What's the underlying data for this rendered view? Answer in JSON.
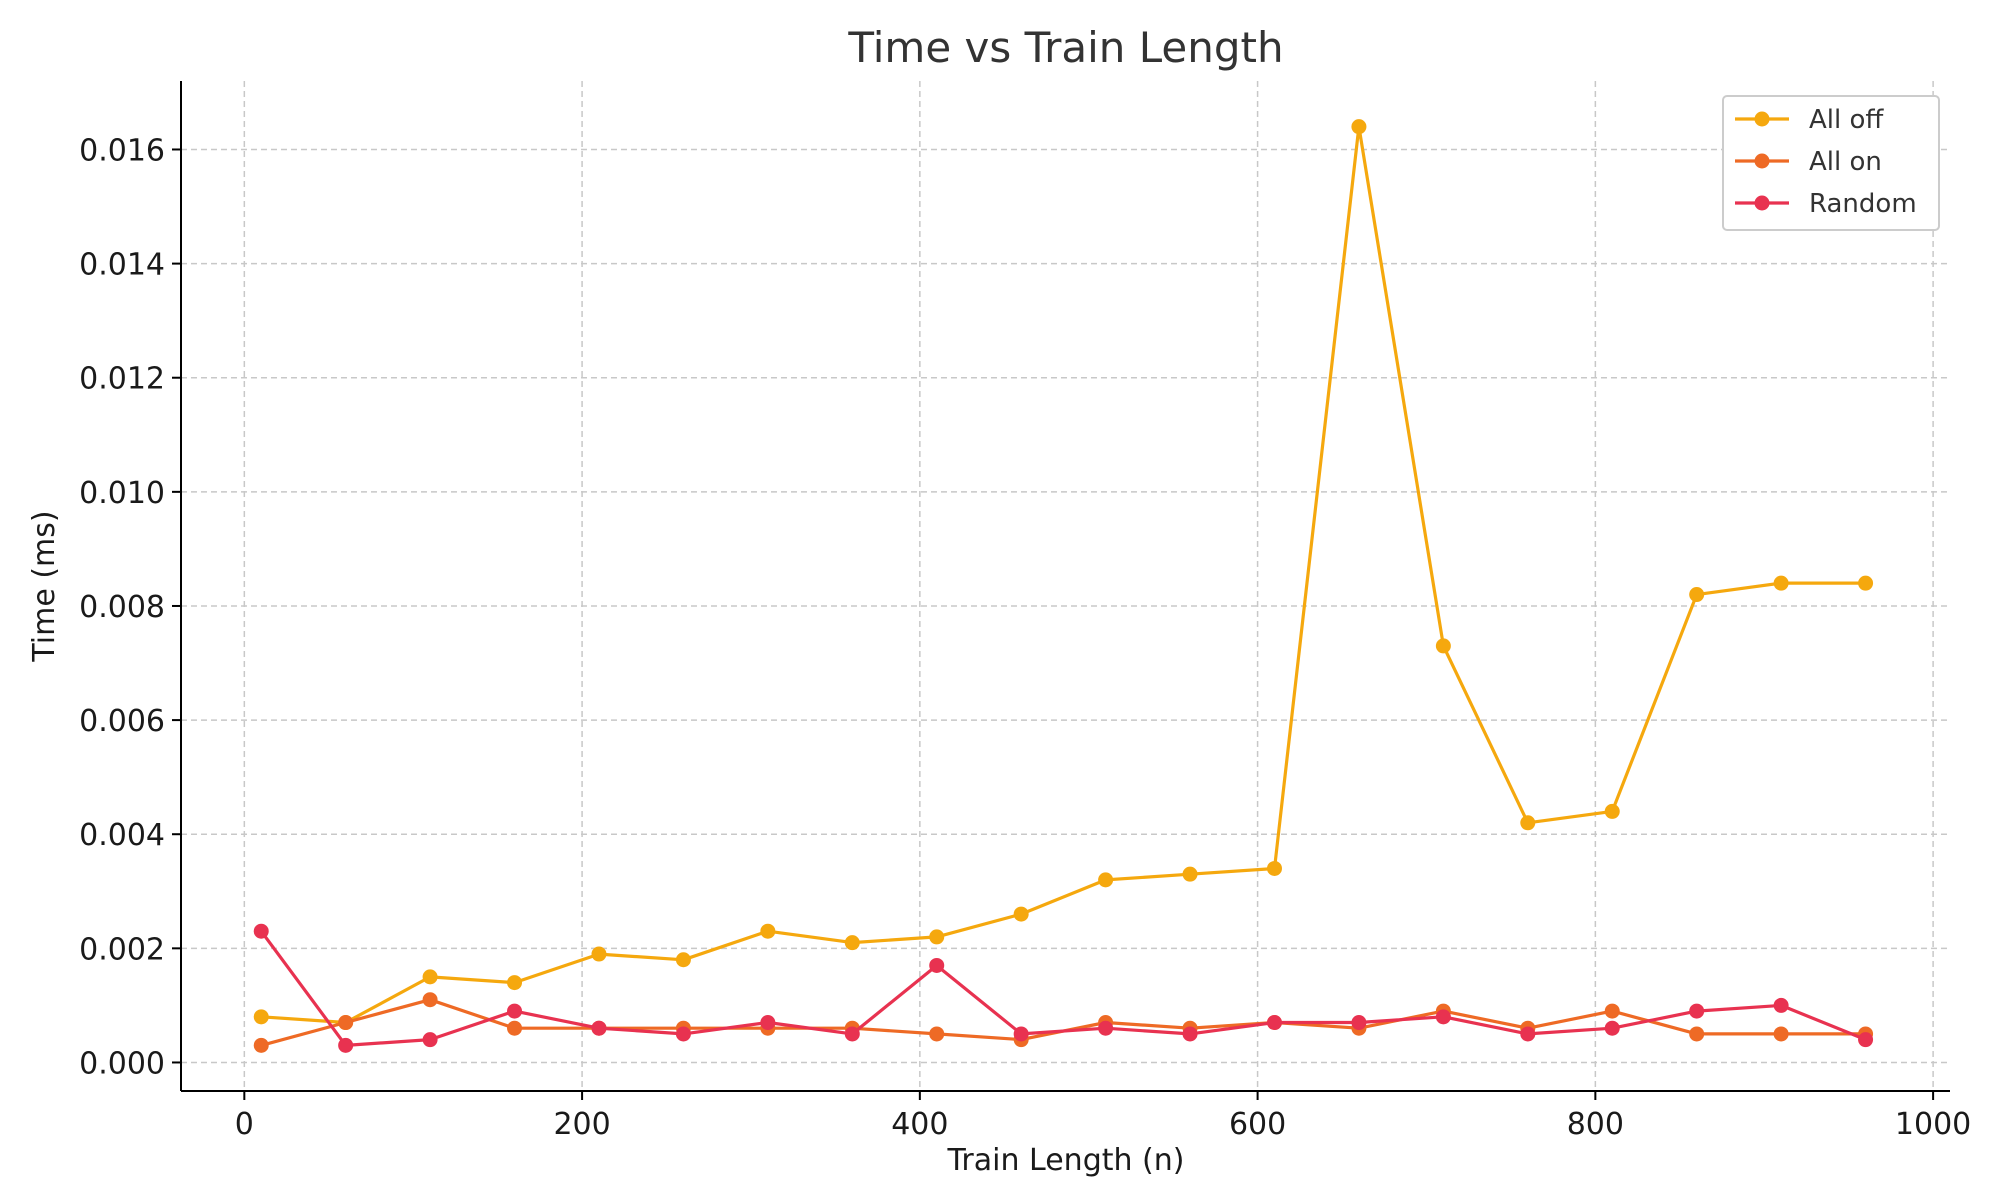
{
  "chart_data": {
    "type": "line",
    "title": "Time vs Train Length",
    "xlabel": "Train Length (n)",
    "ylabel": "Time (ms)",
    "xlim": [
      -37.5,
      1010
    ],
    "ylim": [
      -0.0005,
      0.0172
    ],
    "xticks": [
      0,
      200,
      400,
      600,
      800,
      1000
    ],
    "yticks": [
      0.0,
      0.002,
      0.004,
      0.006,
      0.008,
      0.01,
      0.012,
      0.014,
      0.016
    ],
    "xtick_labels": [
      "0",
      "200",
      "400",
      "600",
      "800",
      "1000"
    ],
    "ytick_labels": [
      "0.000",
      "0.002",
      "0.004",
      "0.006",
      "0.008",
      "0.010",
      "0.012",
      "0.014",
      "0.016"
    ],
    "grid": true,
    "legend_position": "top-right",
    "x": [
      10,
      60,
      110,
      160,
      210,
      260,
      310,
      360,
      410,
      460,
      510,
      560,
      610,
      660,
      710,
      760,
      810,
      860,
      910,
      960
    ],
    "series": [
      {
        "name": "All off",
        "color": "#F5A80E",
        "values": [
          0.0008,
          0.0007,
          0.0015,
          0.0014,
          0.0019,
          0.0018,
          0.0023,
          0.0021,
          0.0022,
          0.0026,
          0.0032,
          0.0033,
          0.0034,
          0.0164,
          0.0073,
          0.0042,
          0.0044,
          0.0082,
          0.0084,
          0.0084
        ]
      },
      {
        "name": "All on",
        "color": "#EE6A25",
        "values": [
          0.0003,
          0.0007,
          0.0011,
          0.0006,
          0.0006,
          0.0006,
          0.0006,
          0.0006,
          0.0005,
          0.0004,
          0.0007,
          0.0006,
          0.0007,
          0.0006,
          0.0009,
          0.0006,
          0.0009,
          0.0005,
          0.0005,
          0.0005
        ]
      },
      {
        "name": "Random",
        "color": "#E83250",
        "values": [
          0.0023,
          0.0003,
          0.0004,
          0.0009,
          0.0006,
          0.0005,
          0.0007,
          0.0005,
          0.0017,
          0.0005,
          0.0006,
          0.0005,
          0.0007,
          0.0007,
          0.0008,
          0.0005,
          0.0006,
          0.0009,
          0.001,
          0.0004
        ]
      }
    ]
  }
}
